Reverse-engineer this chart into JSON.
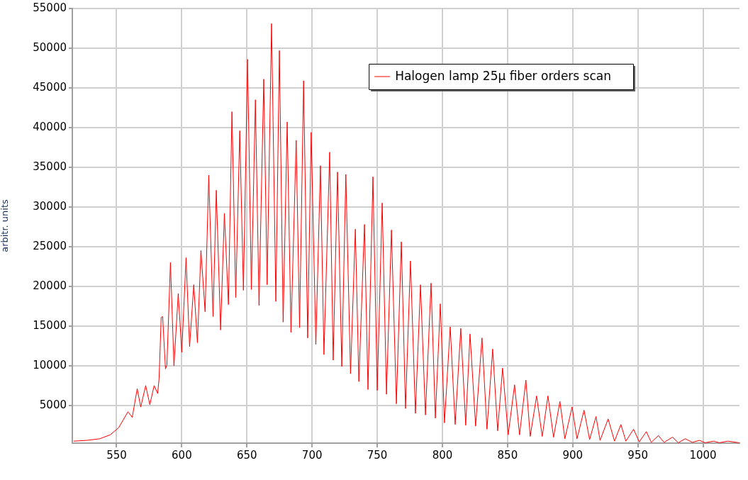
{
  "chart_data": {
    "type": "line",
    "ylabel": "arbitr. units",
    "xlim": [
      516,
      1028
    ],
    "xticks": [
      550,
      600,
      650,
      700,
      750,
      800,
      850,
      900,
      950,
      1000
    ],
    "ylim": [
      250,
      55000
    ],
    "yticks": [
      5000,
      10000,
      15000,
      20000,
      25000,
      30000,
      35000,
      40000,
      45000,
      50000,
      55000
    ],
    "grid": true,
    "legend": "top right",
    "series": [
      {
        "name": "Halogen lamp 25μ fiber orders scan",
        "color": "#ff0000",
        "x": [
          517,
          527.2,
          537,
          545.1,
          551.6,
          558.7,
          562,
          565.8,
          568.5,
          572.3,
          575.5,
          578.8,
          581.5,
          582.6,
          584.2,
          585.3,
          587.5,
          588.6,
          591.3,
          594,
          597.3,
          600,
          603.3,
          606,
          609.2,
          612,
          614.7,
          617.9,
          620.7,
          624,
          626.5,
          629.8,
          632.7,
          635.8,
          638.5,
          641.4,
          644.5,
          647.3,
          650.5,
          653.4,
          656.5,
          659.3,
          662.9,
          665.5,
          668.9,
          672.2,
          674.9,
          677.8,
          680.9,
          683.8,
          687.8,
          690.4,
          693.5,
          696.6,
          699.3,
          702.9,
          706.4,
          709.1,
          713.5,
          716.2,
          719.5,
          722.8,
          725.9,
          729.5,
          733.2,
          735.9,
          740.2,
          742.9,
          746.7,
          750,
          753.8,
          757.1,
          760.9,
          764.7,
          768.5,
          771.7,
          775.5,
          779.3,
          783.2,
          787,
          791.3,
          794.6,
          798.4,
          801.6,
          806,
          809.8,
          814.1,
          817.9,
          821.2,
          825.5,
          830.4,
          834.2,
          838.6,
          842.4,
          846.2,
          850.5,
          855.4,
          859.2,
          864.1,
          867.4,
          872.3,
          876.6,
          881,
          885.3,
          890.2,
          894,
          899.5,
          903.3,
          908.7,
          913,
          917.9,
          921,
          927.2,
          932.1,
          937,
          940.8,
          946.7,
          951.1,
          956.5,
          960.3,
          965.8,
          970.1,
          976.6,
          981,
          986.4,
          991.8,
          997.3,
          1001.6,
          1008.2,
          1012.5,
          1019,
          1027.7
        ],
        "values": [
          500,
          600,
          800,
          1300,
          2200,
          4200,
          3500,
          7100,
          4800,
          7500,
          5100,
          7500,
          6500,
          8400,
          16100,
          16200,
          9600,
          10100,
          23000,
          10000,
          19100,
          11700,
          23600,
          12400,
          20200,
          12900,
          24500,
          16800,
          34000,
          16200,
          32100,
          14500,
          29200,
          17700,
          42000,
          18600,
          39600,
          19500,
          48600,
          19600,
          43500,
          17600,
          46100,
          20200,
          53100,
          18100,
          49700,
          15500,
          40700,
          14200,
          38400,
          14800,
          45900,
          13500,
          39400,
          12700,
          35200,
          11400,
          36900,
          10700,
          34400,
          9900,
          34100,
          9000,
          27200,
          8000,
          27800,
          7000,
          33800,
          6900,
          30500,
          6400,
          27100,
          5200,
          25600,
          4600,
          23200,
          4000,
          20200,
          3800,
          20400,
          3400,
          17800,
          2800,
          14900,
          2600,
          14700,
          2500,
          14000,
          2400,
          13500,
          2000,
          12100,
          1800,
          9700,
          1300,
          7600,
          1300,
          8200,
          1100,
          6200,
          1100,
          6200,
          1000,
          5500,
          800,
          4800,
          800,
          4400,
          700,
          3600,
          600,
          3300,
          500,
          2600,
          500,
          2000,
          400,
          1700,
          350,
          1200,
          350,
          1000,
          300,
          800,
          350,
          600,
          300,
          500,
          300,
          500,
          300
        ]
      }
    ]
  }
}
